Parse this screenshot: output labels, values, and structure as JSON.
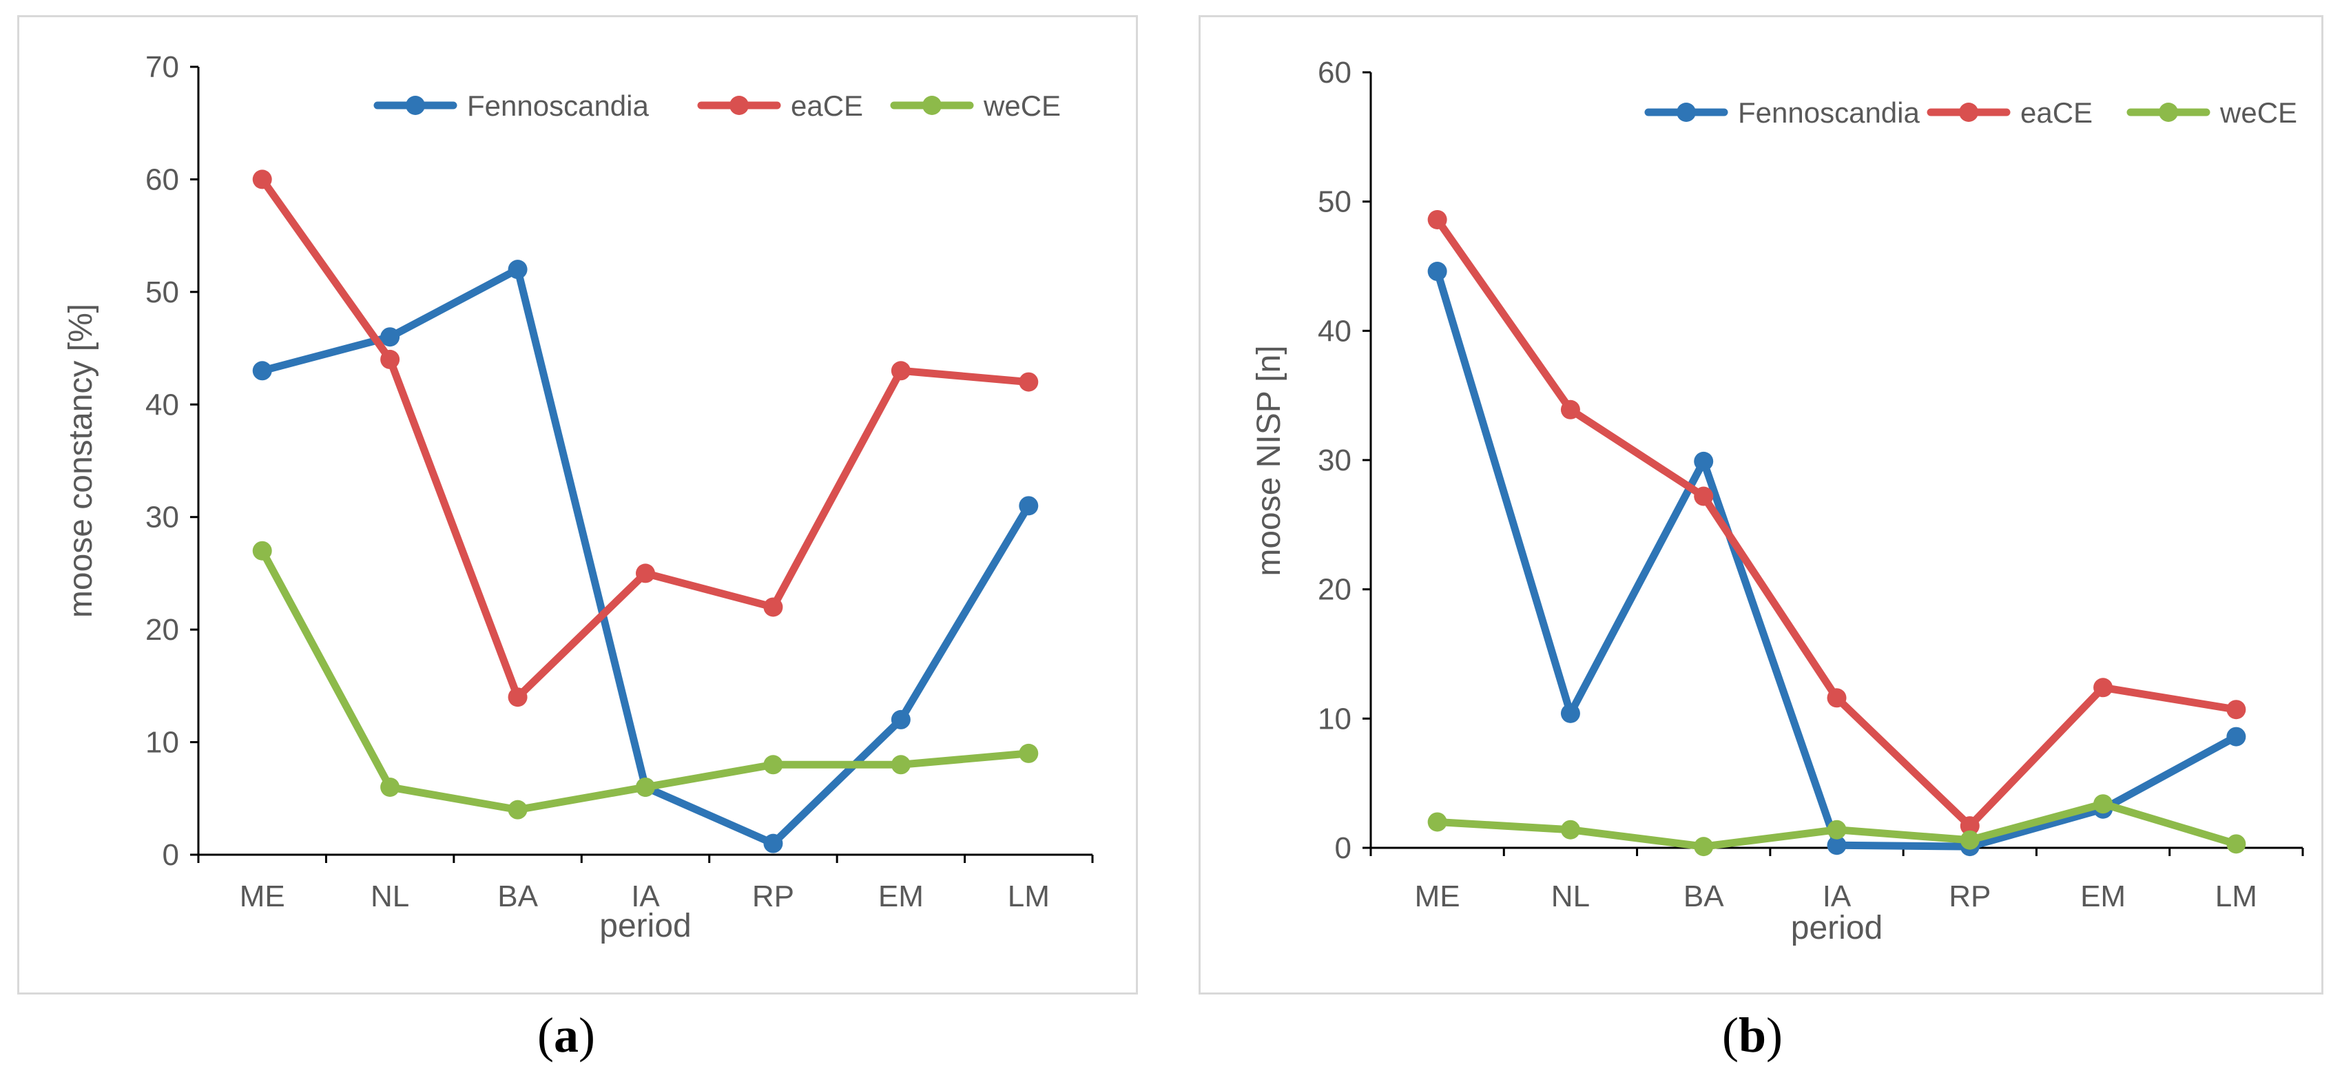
{
  "chart_data": [
    {
      "type": "line",
      "panel": "a",
      "caption_open": "(",
      "caption_letter": "a",
      "caption_close": ")",
      "categories": [
        "ME",
        "NL",
        "BA",
        "IA",
        "RP",
        "EM",
        "LM"
      ],
      "xlabel": "period",
      "ylabel": "moose constancy [%]",
      "ylim": [
        0,
        70
      ],
      "yticks": [
        0,
        10,
        20,
        30,
        40,
        50,
        60,
        70
      ],
      "grid": false,
      "legend_position": "top",
      "series": [
        {
          "name": "Fennoscandia",
          "color": "#2e75b6",
          "values": [
            43,
            46,
            52,
            6,
            1,
            12,
            31
          ]
        },
        {
          "name": "eaCE",
          "color": "#d9504f",
          "values": [
            60,
            44,
            14,
            25,
            22,
            43,
            42
          ]
        },
        {
          "name": "weCE",
          "color": "#8dba4a",
          "values": [
            27,
            6,
            4,
            6,
            8,
            8,
            9
          ]
        }
      ]
    },
    {
      "type": "line",
      "panel": "b",
      "caption_open": "(",
      "caption_letter": "b",
      "caption_close": ")",
      "categories": [
        "ME",
        "NL",
        "BA",
        "IA",
        "RP",
        "EM",
        "LM"
      ],
      "xlabel": "period",
      "ylabel": "moose NISP [n]",
      "ylim": [
        0,
        60
      ],
      "yticks": [
        0,
        10,
        20,
        30,
        40,
        50,
        60
      ],
      "grid": false,
      "legend_position": "top",
      "series": [
        {
          "name": "Fennoscandia",
          "color": "#2e75b6",
          "values": [
            44.6,
            10.4,
            29.9,
            0.2,
            0.1,
            3.0,
            8.6
          ]
        },
        {
          "name": "eaCE",
          "color": "#d9504f",
          "values": [
            48.6,
            33.9,
            27.2,
            11.6,
            1.7,
            12.4,
            10.7
          ]
        },
        {
          "name": "weCE",
          "color": "#8dba4a",
          "values": [
            2.0,
            1.4,
            0.1,
            1.4,
            0.6,
            3.4,
            0.3
          ]
        }
      ]
    }
  ]
}
